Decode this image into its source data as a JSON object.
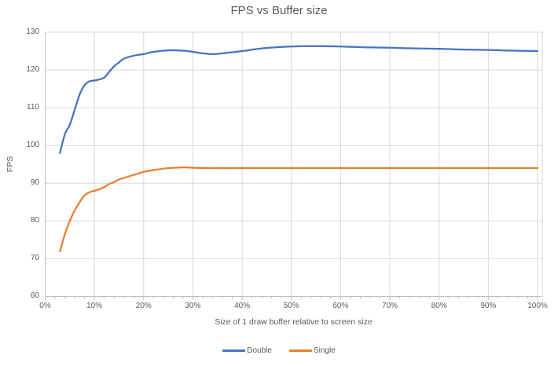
{
  "chart_data": {
    "type": "line",
    "title": "FPS vs Buffer size",
    "xlabel": "Size of 1 draw buffer relative to screen size",
    "ylabel": "FPS",
    "xlim": [
      0,
      100
    ],
    "ylim": [
      60,
      130
    ],
    "x_tick_values": [
      0,
      10,
      20,
      30,
      40,
      50,
      60,
      70,
      80,
      90,
      100
    ],
    "x_tick_labels": [
      "0%",
      "10%",
      "20%",
      "30%",
      "40%",
      "50%",
      "60%",
      "70%",
      "80%",
      "90%",
      "100%"
    ],
    "x_minor_tick_step": 2,
    "y_tick_values": [
      60,
      70,
      80,
      90,
      100,
      110,
      120,
      130
    ],
    "grid": true,
    "smooth": true,
    "legend_position": "bottom",
    "series": [
      {
        "name": "Double",
        "color": "#4472C4",
        "points": [
          [
            3,
            98
          ],
          [
            4,
            103
          ],
          [
            5,
            105.5
          ],
          [
            6,
            109.5
          ],
          [
            7,
            113.5
          ],
          [
            8,
            116
          ],
          [
            9,
            117
          ],
          [
            10,
            117.2
          ],
          [
            11,
            117.5
          ],
          [
            12,
            118
          ],
          [
            13,
            119.5
          ],
          [
            14,
            121
          ],
          [
            15,
            122
          ],
          [
            16,
            123
          ],
          [
            18,
            123.8
          ],
          [
            20,
            124.2
          ],
          [
            22,
            124.8
          ],
          [
            25,
            125.2
          ],
          [
            28,
            125.1
          ],
          [
            30,
            124.8
          ],
          [
            32,
            124.4
          ],
          [
            34,
            124.2
          ],
          [
            36,
            124.4
          ],
          [
            40,
            125
          ],
          [
            44,
            125.7
          ],
          [
            48,
            126.1
          ],
          [
            52,
            126.3
          ],
          [
            56,
            126.3
          ],
          [
            60,
            126.2
          ],
          [
            65,
            126
          ],
          [
            70,
            125.9
          ],
          [
            75,
            125.7
          ],
          [
            80,
            125.6
          ],
          [
            85,
            125.4
          ],
          [
            90,
            125.3
          ],
          [
            95,
            125.1
          ],
          [
            100,
            125
          ]
        ]
      },
      {
        "name": "Single",
        "color": "#ED7D31",
        "points": [
          [
            3,
            72
          ],
          [
            4,
            76.5
          ],
          [
            5,
            80
          ],
          [
            6,
            82.8
          ],
          [
            7,
            85
          ],
          [
            8,
            86.8
          ],
          [
            9,
            87.6
          ],
          [
            10,
            88
          ],
          [
            11,
            88.4
          ],
          [
            12,
            89
          ],
          [
            13,
            89.8
          ],
          [
            14,
            90.3
          ],
          [
            15,
            91
          ],
          [
            16,
            91.4
          ],
          [
            18,
            92.2
          ],
          [
            20,
            93
          ],
          [
            22,
            93.5
          ],
          [
            25,
            94
          ],
          [
            28,
            94.2
          ],
          [
            30,
            94.1
          ],
          [
            34,
            94
          ],
          [
            40,
            94
          ],
          [
            45,
            94
          ],
          [
            50,
            94
          ],
          [
            55,
            94
          ],
          [
            60,
            94
          ],
          [
            65,
            94
          ],
          [
            70,
            94
          ],
          [
            75,
            94
          ],
          [
            80,
            94
          ],
          [
            85,
            94
          ],
          [
            90,
            94
          ],
          [
            95,
            94
          ],
          [
            100,
            94
          ]
        ]
      }
    ]
  },
  "colors": {
    "background": "#FFFFFF",
    "gridline": "#D9D9D9",
    "axis_line": "#BFBFBF",
    "text": "#595959"
  }
}
